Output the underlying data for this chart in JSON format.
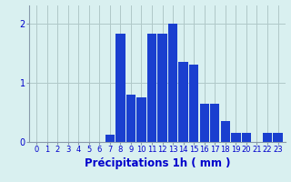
{
  "categories": [
    0,
    1,
    2,
    3,
    4,
    5,
    6,
    7,
    8,
    9,
    10,
    11,
    12,
    13,
    14,
    15,
    16,
    17,
    18,
    19,
    20,
    21,
    22,
    23
  ],
  "values": [
    0,
    0,
    0,
    0,
    0,
    0,
    0,
    0.12,
    1.82,
    0.8,
    0.75,
    1.82,
    1.82,
    2.0,
    1.35,
    1.3,
    0.65,
    0.65,
    0.35,
    0.15,
    0.15,
    0,
    0.15,
    0.15
  ],
  "bar_color": "#1a3fcf",
  "background_color": "#d9f0f0",
  "grid_color": "#b0c8c8",
  "xlabel": "Précipitations 1h ( mm )",
  "ylim": [
    0,
    2.3
  ],
  "yticks": [
    0,
    1,
    2
  ],
  "xlabel_color": "#0000cc",
  "tick_color": "#0000cc",
  "tick_fontsize": 6.0,
  "xlabel_fontsize": 8.5
}
